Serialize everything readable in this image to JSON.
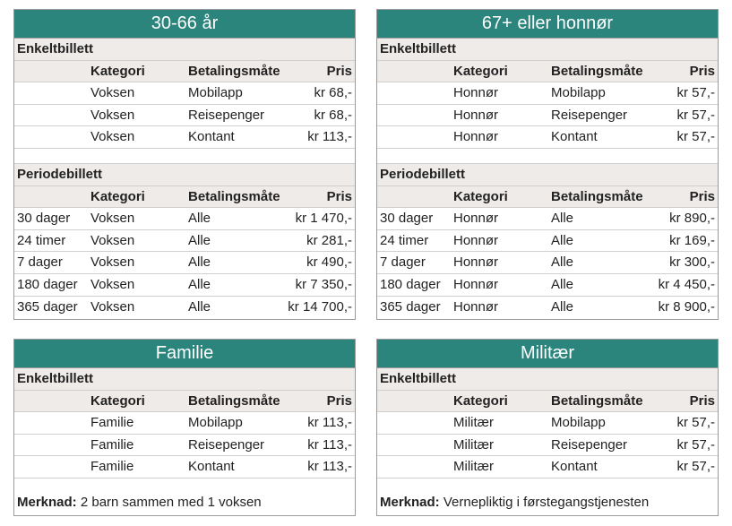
{
  "panels": [
    {
      "title": "30-66 år",
      "sections": [
        {
          "title": "Enkeltbillett",
          "headers": {
            "kategori": "Kategori",
            "betaling": "Betalingsmåte",
            "pris": "Pris"
          },
          "rows": [
            {
              "kategori": "Voksen",
              "betaling": "Mobilapp",
              "pris": "kr 68,-"
            },
            {
              "kategori": "Voksen",
              "betaling": "Reisepenger",
              "pris": "kr 68,-"
            },
            {
              "kategori": "Voksen",
              "betaling": "Kontant",
              "pris": "kr 113,-"
            }
          ]
        },
        {
          "title": "Periodebillett",
          "headers": {
            "kategori": "Kategori",
            "betaling": "Betalingsmåte",
            "pris": "Pris"
          },
          "rows": [
            {
              "periode": "30 dager",
              "kategori": "Voksen",
              "betaling": "Alle",
              "pris": "kr 1 470,-"
            },
            {
              "periode": "24 timer",
              "kategori": "Voksen",
              "betaling": "Alle",
              "pris": "kr 281,-"
            },
            {
              "periode": "7 dager",
              "kategori": "Voksen",
              "betaling": "Alle",
              "pris": "kr 490,-"
            },
            {
              "periode": "180 dager",
              "kategori": "Voksen",
              "betaling": "Alle",
              "pris": "kr 7 350,-"
            },
            {
              "periode": "365 dager",
              "kategori": "Voksen",
              "betaling": "Alle",
              "pris": "kr 14 700,-"
            }
          ]
        }
      ]
    },
    {
      "title": "67+ eller honnør",
      "sections": [
        {
          "title": "Enkeltbillett",
          "headers": {
            "kategori": "Kategori",
            "betaling": "Betalingsmåte",
            "pris": "Pris"
          },
          "rows": [
            {
              "kategori": "Honnør",
              "betaling": "Mobilapp",
              "pris": "kr 57,-"
            },
            {
              "kategori": "Honnør",
              "betaling": "Reisepenger",
              "pris": "kr 57,-"
            },
            {
              "kategori": "Honnør",
              "betaling": "Kontant",
              "pris": "kr 57,-"
            }
          ]
        },
        {
          "title": "Periodebillett",
          "headers": {
            "kategori": "Kategori",
            "betaling": "Betalingsmåte",
            "pris": "Pris"
          },
          "rows": [
            {
              "periode": "30 dager",
              "kategori": "Honnør",
              "betaling": "Alle",
              "pris": "kr 890,-"
            },
            {
              "periode": "24 timer",
              "kategori": "Honnør",
              "betaling": "Alle",
              "pris": "kr 169,-"
            },
            {
              "periode": "7 dager",
              "kategori": "Honnør",
              "betaling": "Alle",
              "pris": "kr 300,-"
            },
            {
              "periode": "180 dager",
              "kategori": "Honnør",
              "betaling": "Alle",
              "pris": "kr 4 450,-"
            },
            {
              "periode": "365 dager",
              "kategori": "Honnør",
              "betaling": "Alle",
              "pris": "kr 8 900,-"
            }
          ]
        }
      ]
    },
    {
      "title": "Familie",
      "sections": [
        {
          "title": "Enkeltbillett",
          "headers": {
            "kategori": "Kategori",
            "betaling": "Betalingsmåte",
            "pris": "Pris"
          },
          "rows": [
            {
              "kategori": "Familie",
              "betaling": "Mobilapp",
              "pris": "kr 113,-"
            },
            {
              "kategori": "Familie",
              "betaling": "Reisepenger",
              "pris": "kr 113,-"
            },
            {
              "kategori": "Familie",
              "betaling": "Kontant",
              "pris": "kr 113,-"
            }
          ]
        }
      ],
      "note": {
        "label": "Merknad:",
        "text": "2 barn sammen med 1 voksen"
      }
    },
    {
      "title": "Militær",
      "sections": [
        {
          "title": "Enkeltbillett",
          "headers": {
            "kategori": "Kategori",
            "betaling": "Betalingsmåte",
            "pris": "Pris"
          },
          "rows": [
            {
              "kategori": "Militær",
              "betaling": "Mobilapp",
              "pris": "kr 57,-"
            },
            {
              "kategori": "Militær",
              "betaling": "Reisepenger",
              "pris": "kr 57,-"
            },
            {
              "kategori": "Militær",
              "betaling": "Kontant",
              "pris": "kr 57,-"
            }
          ]
        }
      ],
      "note": {
        "label": "Merknad:",
        "text": "Vernepliktig i førstegangstjenesten"
      }
    }
  ]
}
